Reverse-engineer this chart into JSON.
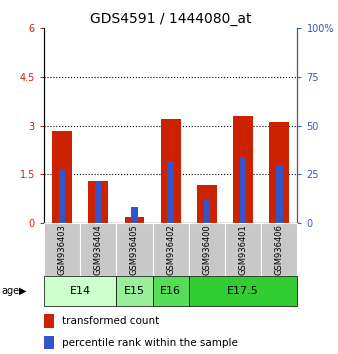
{
  "title": "GDS4591 / 1444080_at",
  "samples": [
    "GSM936403",
    "GSM936404",
    "GSM936405",
    "GSM936402",
    "GSM936400",
    "GSM936401",
    "GSM936406"
  ],
  "transformed_count": [
    2.85,
    1.28,
    0.18,
    3.2,
    1.18,
    3.3,
    3.1
  ],
  "percentile_rank_pct": [
    28,
    21,
    8,
    32,
    12,
    34,
    30
  ],
  "age_groups": [
    {
      "label": "E14",
      "indices": [
        0,
        1
      ],
      "color": "#ccffcc"
    },
    {
      "label": "E15",
      "indices": [
        2
      ],
      "color": "#99ee99"
    },
    {
      "label": "E16",
      "indices": [
        3
      ],
      "color": "#55dd55"
    },
    {
      "label": "E17.5",
      "indices": [
        4,
        5,
        6
      ],
      "color": "#33cc33"
    }
  ],
  "ylim_left": [
    0,
    6
  ],
  "ylim_right": [
    0,
    100
  ],
  "yticks_left": [
    0,
    1.5,
    3.0,
    4.5,
    6.0
  ],
  "yticks_right": [
    0,
    25,
    50,
    75,
    100
  ],
  "red_color": "#cc2200",
  "blue_color": "#3355cc",
  "sample_bg_color": "#c8c8c8",
  "legend_red": "transformed count",
  "legend_blue": "percentile rank within the sample",
  "title_fontsize": 10,
  "tick_fontsize": 7,
  "label_fontsize": 7.5
}
